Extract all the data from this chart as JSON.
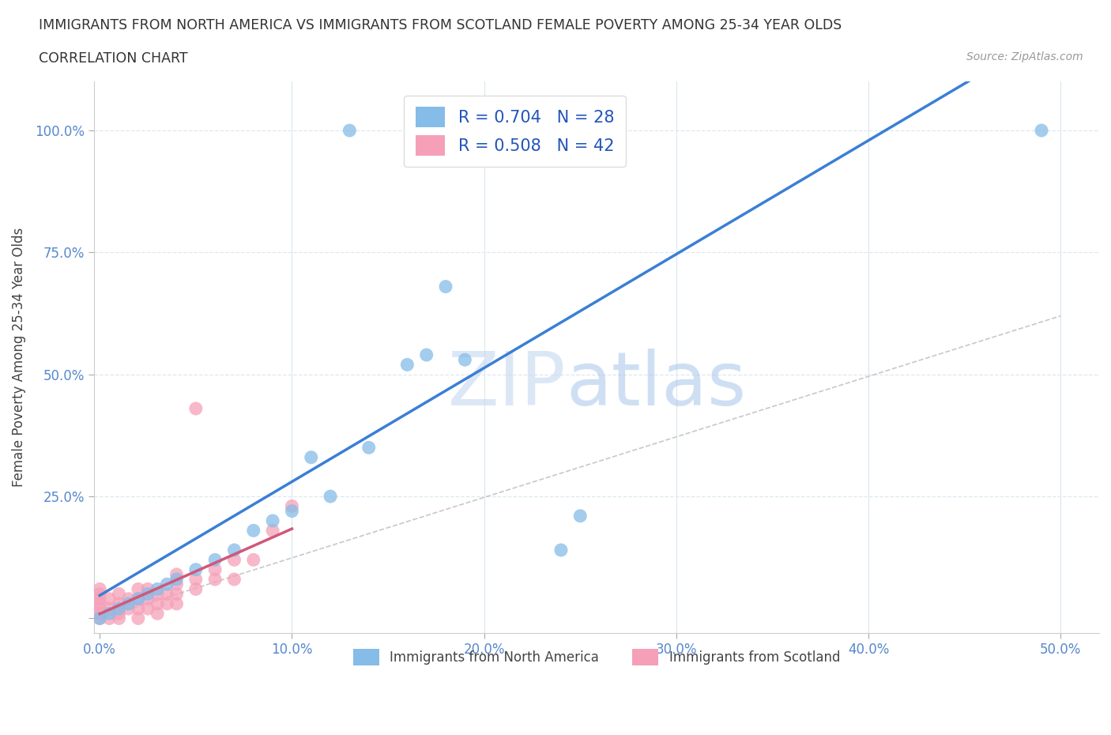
{
  "title_line1": "IMMIGRANTS FROM NORTH AMERICA VS IMMIGRANTS FROM SCOTLAND FEMALE POVERTY AMONG 25-34 YEAR OLDS",
  "title_line2": "CORRELATION CHART",
  "source_text": "Source: ZipAtlas.com",
  "ylabel": "Female Poverty Among 25-34 Year Olds",
  "watermark_zip": "ZIP",
  "watermark_atlas": "atlas",
  "r_north_america": 0.704,
  "n_north_america": 28,
  "r_scotland": 0.508,
  "n_scotland": 42,
  "xlim": [
    -0.003,
    0.52
  ],
  "ylim": [
    -0.03,
    1.1
  ],
  "color_north_america": "#85bce8",
  "color_scotland": "#f5a0b8",
  "trendline_na_color": "#3a7fd5",
  "trendline_sc_color": "#d05878",
  "trendline_dashed_color": "#c8c8c8",
  "background_color": "#ffffff",
  "grid_color": "#dce8f0",
  "na_x": [
    0.0,
    0.005,
    0.01,
    0.015,
    0.02,
    0.025,
    0.03,
    0.035,
    0.04,
    0.05,
    0.06,
    0.07,
    0.08,
    0.09,
    0.1,
    0.11,
    0.12,
    0.13,
    0.14,
    0.16,
    0.17,
    0.18,
    0.19,
    0.21,
    0.22,
    0.24,
    0.25,
    0.49
  ],
  "na_y": [
    0.0,
    0.01,
    0.02,
    0.03,
    0.04,
    0.05,
    0.06,
    0.07,
    0.08,
    0.1,
    0.12,
    0.14,
    0.18,
    0.2,
    0.22,
    0.33,
    0.25,
    1.0,
    0.35,
    0.52,
    0.54,
    0.68,
    0.53,
    1.0,
    1.0,
    0.14,
    0.21,
    1.0
  ],
  "sc_x": [
    0.0,
    0.0,
    0.0,
    0.0,
    0.0,
    0.0,
    0.0,
    0.005,
    0.005,
    0.005,
    0.01,
    0.01,
    0.01,
    0.01,
    0.015,
    0.015,
    0.02,
    0.02,
    0.02,
    0.02,
    0.025,
    0.025,
    0.025,
    0.03,
    0.03,
    0.03,
    0.035,
    0.035,
    0.04,
    0.04,
    0.04,
    0.04,
    0.05,
    0.05,
    0.05,
    0.06,
    0.06,
    0.07,
    0.07,
    0.08,
    0.09,
    0.1
  ],
  "sc_y": [
    0.0,
    0.01,
    0.02,
    0.03,
    0.04,
    0.05,
    0.06,
    0.0,
    0.02,
    0.04,
    0.0,
    0.01,
    0.03,
    0.05,
    0.02,
    0.04,
    0.0,
    0.02,
    0.04,
    0.06,
    0.02,
    0.04,
    0.06,
    0.01,
    0.03,
    0.05,
    0.03,
    0.05,
    0.03,
    0.05,
    0.07,
    0.09,
    0.06,
    0.08,
    0.43,
    0.08,
    0.1,
    0.08,
    0.12,
    0.12,
    0.18,
    0.23
  ]
}
